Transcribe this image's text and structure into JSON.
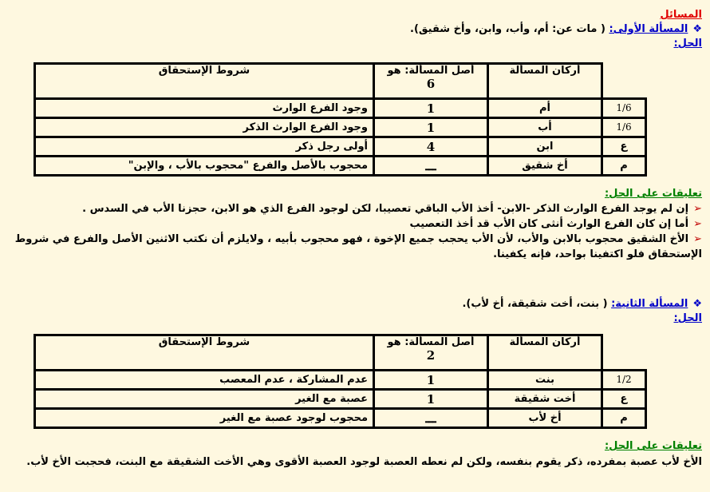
{
  "heading": "المسائل",
  "problem1": {
    "label": "المسألة الأولى:",
    "text": " ( مات عن: أم، وأب، وابن، وأخ شقيق).",
    "solution_label": "الحل:",
    "table": {
      "headers": [
        "أركان المسألة",
        "أصل المسألة: هو",
        "شروط الإستحقاق"
      ],
      "asl": "6",
      "rows": [
        {
          "share": "1/6",
          "heir": "أم",
          "portion": "1",
          "condition": "وجود الفرع الوارث"
        },
        {
          "share": "1/6",
          "heir": "أب",
          "portion": "1",
          "condition": "وجود الفرع الوارث الذكر"
        },
        {
          "share": "ع",
          "heir": "ابن",
          "portion": "4",
          "condition": "أولى رجل ذكر"
        },
        {
          "share": "م",
          "heir": "أخ شقيق",
          "portion": "ـــ",
          "condition": "محجوب بالأصل والفرع \"محجوب بالأب ، والإبن\""
        }
      ]
    },
    "comments_label": "تعليقات على الحل:",
    "comments": [
      "إن لم يوجد الفرع الوارث الذكر -الابن- أخذ الأب الباقي تعصيبا، لكن  لوجود الفرع الذي هو الابن، حجزنا الأب في السدس .",
      "أما إن كان الفرع الوارث أنثى كان الأب قد أخذ التعصيب",
      "الأخ الشقيق محجوب  بالابن والأب، لأن الأب يحجب جميع الإخوة ، فهو محجوب بأبيه ، ولايلزم أن  نكتب الاثنين الأصل والفرع في شروط"
    ],
    "continuation": "الإستحقاق فلو اكتفينا بواحد، فإنه يكفينا."
  },
  "problem2": {
    "label": "المسألة الثانية:",
    "text": " ( بنت، أخت شقيقة، أخ لأب).",
    "solution_label": "الحل:",
    "table": {
      "headers": [
        "أركان المسألة",
        "أصل المسألة: هو",
        "شروط الإستحقاق"
      ],
      "asl": "2",
      "rows": [
        {
          "share": "1/2",
          "heir": "بنت",
          "portion": "1",
          "condition": "عدم المشاركة ، عدم المعصب"
        },
        {
          "share": "ع",
          "heir": "أخت شقيقة",
          "portion": "1",
          "condition": "عصبة مع الغير"
        },
        {
          "share": "م",
          "heir": "أخ لأب",
          "portion": "ـــ",
          "condition": "محجوب لوجود عصبة مع الغير"
        }
      ]
    },
    "comments_label": "تعليقات على الحل:",
    "comment": "الأخ لأب عصبة بمفرده، ذكر يقوم بنفسه، ولكن لم نعطه العصبة لوجود العصبة الأقوى وهي الأخت الشقيقة مع البنت، فحجبت الأخ لأب."
  }
}
